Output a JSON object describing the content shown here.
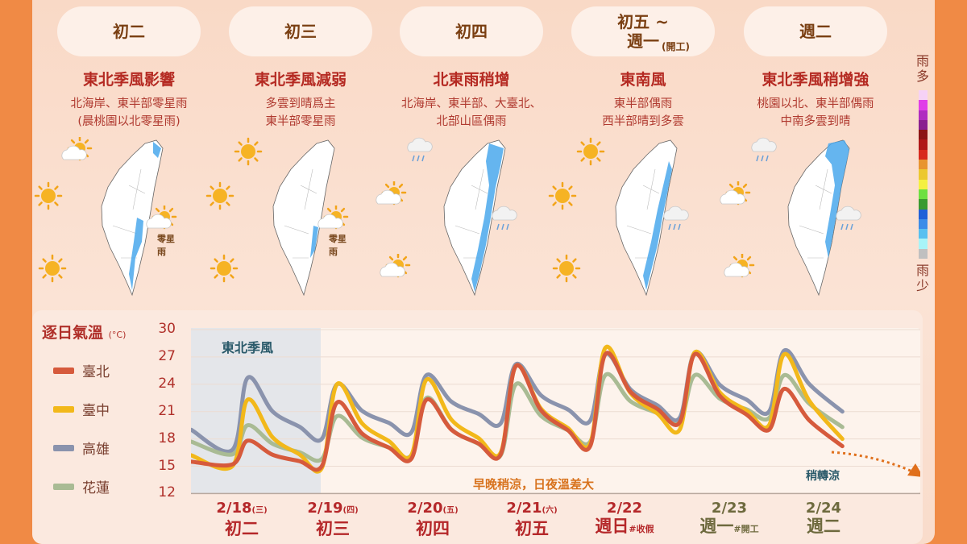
{
  "days": [
    {
      "pill": "初二",
      "pill_sub": "",
      "title": "東北季風影響",
      "desc": [
        "北海岸、東半部零星雨",
        "(晨桃園以北零星雨)"
      ],
      "map_label": "零星雨",
      "icons": [
        "partly-sunny-icon",
        "sun-icon",
        "partly-sunny-icon",
        "sun-icon"
      ]
    },
    {
      "pill": "初三",
      "pill_sub": "",
      "title": "東北季風減弱",
      "desc": [
        "多雲到晴爲主",
        "東半部零星雨"
      ],
      "map_label": "零星雨",
      "icons": [
        "sun-icon",
        "sun-icon",
        "partly-sunny-icon",
        "sun-icon"
      ]
    },
    {
      "pill": "初四",
      "pill_sub": "",
      "title": "北東雨稍增",
      "desc": [
        "北海岸、東半部、大臺北、",
        "北部山區偶雨"
      ],
      "map_label": "",
      "icons": [
        "rain-cloud-icon",
        "partly-sunny-icon",
        "rain-cloud-icon",
        "partly-sunny-icon"
      ]
    },
    {
      "pill": "初五 ~\n週一",
      "pill_sub": "(開工)",
      "title": "東南風",
      "desc": [
        "東半部偶雨",
        "西半部晴到多雲"
      ],
      "map_label": "",
      "icons": [
        "sun-icon",
        "sun-icon",
        "rain-cloud-icon",
        "sun-icon"
      ]
    },
    {
      "pill": "週二",
      "pill_sub": "",
      "title": "東北季風稍增強",
      "desc": [
        "桃園以北、東半部偶雨",
        "中南多雲到晴"
      ],
      "map_label": "",
      "icons": [
        "rain-cloud-icon",
        "partly-sunny-icon",
        "rain-cloud-icon",
        "partly-sunny-icon"
      ]
    }
  ],
  "rain_scale": {
    "top": "雨多",
    "bottom": "雨少",
    "colors": [
      "#f6d2f6",
      "#e03ee8",
      "#b02cc0",
      "#8a1f8f",
      "#8c1414",
      "#b01818",
      "#d82a1e",
      "#e89430",
      "#ecc830",
      "#f4f040",
      "#6ee040",
      "#3a9a30",
      "#2060d8",
      "#3c8ce8",
      "#58c0f0",
      "#a8f4f8",
      "#c0c0c0"
    ]
  },
  "chart_data": {
    "type": "line",
    "title": "逐日氣溫",
    "unit": "(°C)",
    "ylim": [
      12,
      30
    ],
    "yticks": [
      30,
      27,
      24,
      21,
      18,
      15,
      12
    ],
    "grid": true,
    "legend": "left",
    "categories": [
      {
        "date": "2/18",
        "dow": "(三)",
        "label": "初二",
        "note": "",
        "color": "#b5282a"
      },
      {
        "date": "2/19",
        "dow": "(四)",
        "label": "初三",
        "note": "",
        "color": "#b5282a"
      },
      {
        "date": "2/20",
        "dow": "(五)",
        "label": "初四",
        "note": "",
        "color": "#b5282a"
      },
      {
        "date": "2/21",
        "dow": "(六)",
        "label": "初五",
        "note": "",
        "color": "#b5282a"
      },
      {
        "date": "2/22",
        "dow": "",
        "label": "週日",
        "note": "#收假",
        "color": "#b5282a"
      },
      {
        "date": "2/23",
        "dow": "",
        "label": "週一",
        "note": "#開工",
        "color": "#6e6a3e"
      },
      {
        "date": "2/24",
        "dow": "",
        "label": "週二",
        "note": "",
        "color": "#6e6a3e"
      }
    ],
    "series": [
      {
        "name": "臺北",
        "color": "#d65a3c",
        "start": 15.5,
        "end": 17.2,
        "low": [
          15.2,
          15.0,
          15.8,
          16.3,
          17.2,
          19.8,
          19.0
        ],
        "high": [
          17.8,
          22.0,
          22.3,
          26.0,
          27.3,
          27.3,
          23.5
        ]
      },
      {
        "name": "臺中",
        "color": "#f2b81a",
        "start": 16.2,
        "end": 18.0,
        "low": [
          15.0,
          14.8,
          16.2,
          16.5,
          17.5,
          19.0,
          19.5
        ],
        "high": [
          22.3,
          24.0,
          24.5,
          26.0,
          28.0,
          27.5,
          27.3
        ]
      },
      {
        "name": "高雄",
        "color": "#8a93ad",
        "start": 19.0,
        "end": 21.0,
        "low": [
          16.8,
          18.0,
          18.7,
          19.7,
          20.0,
          20.3,
          21.0
        ],
        "high": [
          24.7,
          24.0,
          25.0,
          26.2,
          27.3,
          27.5,
          27.7
        ]
      },
      {
        "name": "花蓮",
        "color": "#a9bb94",
        "start": 17.7,
        "end": 19.3,
        "low": [
          16.3,
          15.8,
          16.2,
          16.2,
          17.7,
          19.8,
          20.3
        ],
        "high": [
          19.5,
          20.5,
          22.5,
          24.0,
          25.0,
          25.0,
          25.0
        ]
      }
    ],
    "annotations": {
      "monsoon": "東北季風",
      "diurnal": "早晚稍涼，日夜溫差大",
      "cooling": "稍轉涼"
    }
  }
}
